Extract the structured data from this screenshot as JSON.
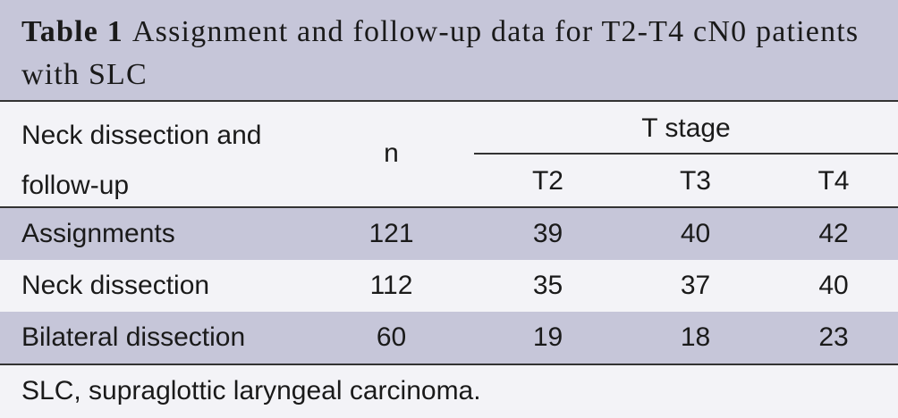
{
  "title": {
    "label": "Table 1",
    "text": "Assignment and follow-up data for T2-T4 cN0 patients with SLC"
  },
  "table": {
    "header": {
      "first": "Neck dissection and follow-up",
      "n": "n",
      "group": "T stage",
      "subs": [
        "T2",
        "T3",
        "T4"
      ]
    },
    "rows": [
      [
        "Assignments",
        121,
        39,
        40,
        42
      ],
      [
        "Neck dissection",
        112,
        35,
        37,
        40
      ],
      [
        "Bilateral dissection",
        60,
        19,
        18,
        23
      ]
    ]
  },
  "footnote": "SLC, supraglottic laryngeal carcinoma."
}
